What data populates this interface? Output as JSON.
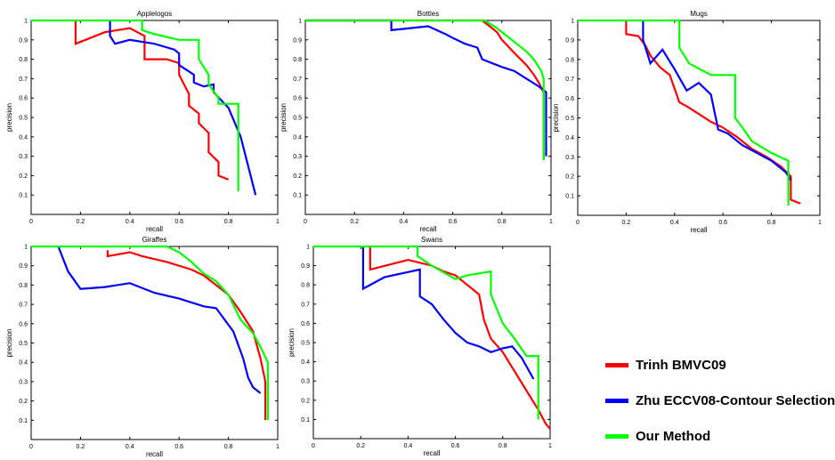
{
  "legend": {
    "items": [
      {
        "label": "Trinh BMVC09",
        "color": "#ff0000"
      },
      {
        "label": "Zhu ECCV08-Contour Selection",
        "color": "#0000ff"
      },
      {
        "label": "Our Method",
        "color": "#00ff00"
      }
    ]
  },
  "chart_data": [
    {
      "type": "line",
      "title": "Applelogos",
      "xlabel": "recall",
      "ylabel": "precision",
      "xlim": [
        0,
        1
      ],
      "ylim": [
        0,
        1
      ],
      "xticks": [
        "0",
        "0.2",
        "0.4",
        "0.6",
        "0.8",
        "1"
      ],
      "yticks": [
        "0.1",
        "0.2",
        "0.3",
        "0.4",
        "0.5",
        "0.6",
        "0.7",
        "0.8",
        "0.9",
        "1"
      ],
      "series": [
        {
          "name": "Trinh BMVC09",
          "color": "#ff0000",
          "x": [
            0.18,
            0.18,
            0.3,
            0.4,
            0.46,
            0.46,
            0.55,
            0.6,
            0.6,
            0.64,
            0.64,
            0.68,
            0.68,
            0.72,
            0.72,
            0.76,
            0.76,
            0.8
          ],
          "y": [
            1,
            0.88,
            0.94,
            0.96,
            0.92,
            0.8,
            0.8,
            0.78,
            0.72,
            0.62,
            0.56,
            0.52,
            0.47,
            0.42,
            0.32,
            0.27,
            0.2,
            0.18
          ]
        },
        {
          "name": "Zhu ECCV08-Contour Selection",
          "color": "#0000ff",
          "x": [
            0.32,
            0.32,
            0.34,
            0.4,
            0.5,
            0.58,
            0.6,
            0.6,
            0.66,
            0.66,
            0.7,
            0.74,
            0.74,
            0.8,
            0.85,
            0.91
          ],
          "y": [
            1,
            0.92,
            0.88,
            0.9,
            0.88,
            0.85,
            0.83,
            0.77,
            0.72,
            0.68,
            0.66,
            0.67,
            0.63,
            0.55,
            0.4,
            0.1
          ]
        },
        {
          "name": "Our Method",
          "color": "#00ff00",
          "x": [
            0,
            0.45,
            0.45,
            0.5,
            0.6,
            0.68,
            0.68,
            0.72,
            0.72,
            0.76,
            0.76,
            0.84,
            0.84
          ],
          "y": [
            1,
            1,
            0.95,
            0.93,
            0.9,
            0.9,
            0.8,
            0.72,
            0.67,
            0.6,
            0.57,
            0.57,
            0.12
          ]
        }
      ]
    },
    {
      "type": "line",
      "title": "Bottles",
      "xlabel": "recall",
      "ylabel": "precision",
      "xlim": [
        0,
        1
      ],
      "ylim": [
        0,
        1
      ],
      "xticks": [
        "0",
        "0.2",
        "0.4",
        "0.6",
        "0.8",
        "1"
      ],
      "yticks": [
        "0.1",
        "0.2",
        "0.3",
        "0.4",
        "0.5",
        "0.6",
        "0.7",
        "0.8",
        "0.9",
        "1"
      ],
      "series": [
        {
          "name": "Trinh BMVC09",
          "color": "#ff0000",
          "x": [
            0,
            0.72,
            0.75,
            0.78,
            0.8,
            0.83,
            0.86,
            0.9,
            0.93,
            0.95,
            0.97,
            0.97
          ],
          "y": [
            1,
            1,
            0.97,
            0.94,
            0.9,
            0.86,
            0.82,
            0.77,
            0.72,
            0.68,
            0.63,
            0.28
          ]
        },
        {
          "name": "Zhu ECCV08-Contour Selection",
          "color": "#0000ff",
          "x": [
            0,
            0.35,
            0.35,
            0.5,
            0.57,
            0.6,
            0.65,
            0.7,
            0.72,
            0.8,
            0.85,
            0.9,
            0.95,
            0.98,
            0.98
          ],
          "y": [
            1,
            1,
            0.95,
            0.97,
            0.93,
            0.91,
            0.88,
            0.86,
            0.8,
            0.76,
            0.74,
            0.7,
            0.66,
            0.63,
            0.3
          ]
        },
        {
          "name": "Our Method",
          "color": "#00ff00",
          "x": [
            0,
            0.73,
            0.78,
            0.82,
            0.86,
            0.9,
            0.93,
            0.96,
            0.97,
            0.97
          ],
          "y": [
            1,
            1,
            0.96,
            0.92,
            0.88,
            0.84,
            0.8,
            0.74,
            0.7,
            0.28
          ]
        }
      ]
    },
    {
      "type": "line",
      "title": "Mugs",
      "xlabel": "recall",
      "ylabel": "precision",
      "xlim": [
        0,
        1
      ],
      "ylim": [
        0,
        1
      ],
      "xticks": [
        "0",
        "0.2",
        "0.4",
        "0.6",
        "0.8",
        "1"
      ],
      "yticks": [
        "0.1",
        "0.2",
        "0.3",
        "0.4",
        "0.5",
        "0.6",
        "0.7",
        "0.8",
        "0.9",
        "1"
      ],
      "series": [
        {
          "name": "Trinh BMVC09",
          "color": "#ff0000",
          "x": [
            0.2,
            0.2,
            0.25,
            0.28,
            0.3,
            0.34,
            0.38,
            0.42,
            0.45,
            0.5,
            0.55,
            0.6,
            0.66,
            0.72,
            0.78,
            0.84,
            0.88,
            0.88,
            0.92
          ],
          "y": [
            1,
            0.93,
            0.92,
            0.87,
            0.82,
            0.76,
            0.72,
            0.58,
            0.56,
            0.52,
            0.48,
            0.45,
            0.4,
            0.34,
            0.3,
            0.25,
            0.2,
            0.08,
            0.06
          ]
        },
        {
          "name": "Zhu ECCV08-Contour Selection",
          "color": "#0000ff",
          "x": [
            0.27,
            0.27,
            0.3,
            0.35,
            0.4,
            0.45,
            0.5,
            0.55,
            0.58,
            0.62,
            0.68,
            0.74,
            0.8,
            0.86,
            0.88
          ],
          "y": [
            1,
            0.9,
            0.78,
            0.85,
            0.75,
            0.64,
            0.68,
            0.62,
            0.44,
            0.42,
            0.36,
            0.32,
            0.28,
            0.22,
            0.18
          ]
        },
        {
          "name": "Our Method",
          "color": "#00ff00",
          "x": [
            0,
            0.42,
            0.42,
            0.46,
            0.55,
            0.65,
            0.65,
            0.68,
            0.72,
            0.8,
            0.87,
            0.87
          ],
          "y": [
            1,
            1,
            0.86,
            0.78,
            0.72,
            0.72,
            0.5,
            0.45,
            0.38,
            0.32,
            0.28,
            0.05
          ]
        }
      ]
    },
    {
      "type": "line",
      "title": "Giraffes",
      "xlabel": "recall",
      "ylabel": "precision",
      "xlim": [
        0,
        1
      ],
      "ylim": [
        0,
        1
      ],
      "xticks": [
        "0",
        "0.2",
        "0.4",
        "0.6",
        "0.8",
        "1"
      ],
      "yticks": [
        "0.1",
        "0.2",
        "0.3",
        "0.4",
        "0.5",
        "0.6",
        "0.7",
        "0.8",
        "0.9",
        "1"
      ],
      "series": [
        {
          "name": "Trinh BMVC09",
          "color": "#ff0000",
          "x": [
            0.31,
            0.31,
            0.4,
            0.45,
            0.55,
            0.65,
            0.7,
            0.75,
            0.8,
            0.85,
            0.9,
            0.93,
            0.95,
            0.95
          ],
          "y": [
            0.98,
            0.95,
            0.97,
            0.95,
            0.92,
            0.88,
            0.85,
            0.8,
            0.75,
            0.66,
            0.56,
            0.42,
            0.3,
            0.1
          ]
        },
        {
          "name": "Zhu ECCV08-Contour Selection",
          "color": "#0000ff",
          "x": [
            0.11,
            0.15,
            0.2,
            0.3,
            0.4,
            0.5,
            0.6,
            0.7,
            0.75,
            0.82,
            0.86,
            0.88,
            0.9,
            0.93
          ],
          "y": [
            1,
            0.87,
            0.78,
            0.79,
            0.81,
            0.76,
            0.73,
            0.69,
            0.68,
            0.56,
            0.42,
            0.32,
            0.27,
            0.24
          ]
        },
        {
          "name": "Our Method",
          "color": "#00ff00",
          "x": [
            0,
            0.55,
            0.6,
            0.65,
            0.7,
            0.75,
            0.8,
            0.85,
            0.9,
            0.93,
            0.96,
            0.96
          ],
          "y": [
            1,
            1,
            0.97,
            0.92,
            0.86,
            0.82,
            0.75,
            0.62,
            0.55,
            0.48,
            0.4,
            0.1
          ]
        }
      ]
    },
    {
      "type": "line",
      "title": "Swans",
      "xlabel": "recall",
      "ylabel": "precision",
      "xlim": [
        0,
        1
      ],
      "ylim": [
        0,
        1
      ],
      "xticks": [
        "0",
        "0.2",
        "0.4",
        "0.6",
        "0.8",
        "1"
      ],
      "yticks": [
        "0.1",
        "0.2",
        "0.3",
        "0.4",
        "0.5",
        "0.6",
        "0.7",
        "0.8",
        "0.9",
        "1"
      ],
      "series": [
        {
          "name": "Trinh BMVC09",
          "color": "#ff0000",
          "x": [
            0.24,
            0.24,
            0.4,
            0.5,
            0.55,
            0.6,
            0.65,
            0.7,
            0.72,
            0.75,
            0.8,
            0.85,
            0.9,
            0.95,
            0.98,
            1
          ],
          "y": [
            1,
            0.88,
            0.93,
            0.9,
            0.87,
            0.85,
            0.8,
            0.75,
            0.62,
            0.52,
            0.45,
            0.35,
            0.25,
            0.15,
            0.08,
            0.05
          ]
        },
        {
          "name": "Zhu ECCV08-Contour Selection",
          "color": "#0000ff",
          "x": [
            0.21,
            0.21,
            0.3,
            0.45,
            0.45,
            0.5,
            0.55,
            0.6,
            0.65,
            0.7,
            0.75,
            0.8,
            0.84,
            0.88,
            0.93
          ],
          "y": [
            1,
            0.78,
            0.84,
            0.88,
            0.74,
            0.7,
            0.62,
            0.55,
            0.5,
            0.48,
            0.45,
            0.47,
            0.48,
            0.42,
            0.31
          ]
        },
        {
          "name": "Our Method",
          "color": "#00ff00",
          "x": [
            0,
            0.44,
            0.44,
            0.5,
            0.6,
            0.65,
            0.75,
            0.75,
            0.8,
            0.85,
            0.9,
            0.95,
            0.95
          ],
          "y": [
            1,
            1,
            0.95,
            0.9,
            0.83,
            0.85,
            0.87,
            0.75,
            0.6,
            0.52,
            0.43,
            0.43,
            0.1
          ]
        }
      ]
    }
  ]
}
